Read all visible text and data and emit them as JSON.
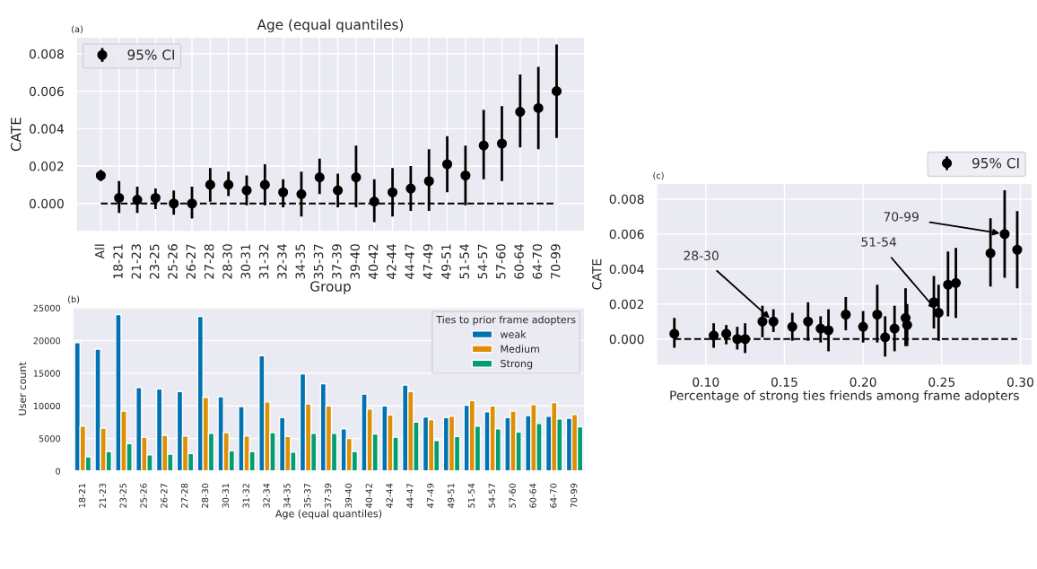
{
  "chart_data": [
    {
      "type": "scatter",
      "title": "Age (equal quantiles)",
      "xlabel": "Group",
      "ylabel": "CATE",
      "annotations": [
        "(a)"
      ],
      "categories": [
        "All",
        "18-21",
        "21-23",
        "23-25",
        "25-26",
        "26-27",
        "27-28",
        "28-30",
        "30-31",
        "31-32",
        "32-34",
        "34-35",
        "35-37",
        "37-39",
        "39-40",
        "40-42",
        "42-44",
        "44-47",
        "47-49",
        "49-51",
        "51-54",
        "54-57",
        "57-60",
        "60-64",
        "64-70",
        "70-99"
      ],
      "series": [
        {
          "name": "95% CI",
          "color": "#000000",
          "values": [
            0.0015,
            0.0003,
            0.0002,
            0.0003,
            0.0,
            0.0,
            0.001,
            0.001,
            0.0007,
            0.001,
            0.0006,
            0.0005,
            0.0014,
            0.0007,
            0.0014,
            0.0001,
            0.0006,
            0.0008,
            0.0012,
            0.0021,
            0.0015,
            0.0031,
            0.0032,
            0.0049,
            0.0051,
            0.006
          ],
          "errors": [
            [
              0.0012,
              0.0018
            ],
            [
              -0.0005,
              0.0012
            ],
            [
              -0.0005,
              0.0009
            ],
            [
              -0.0003,
              0.0008
            ],
            [
              -0.0006,
              0.0007
            ],
            [
              -0.0008,
              0.0009
            ],
            [
              0.0001,
              0.0019
            ],
            [
              0.0004,
              0.0017
            ],
            [
              -0.0001,
              0.0015
            ],
            [
              -0.0001,
              0.0021
            ],
            [
              -0.0002,
              0.0013
            ],
            [
              -0.0007,
              0.0017
            ],
            [
              0.0005,
              0.0024
            ],
            [
              -0.0002,
              0.0016
            ],
            [
              -0.0002,
              0.0031
            ],
            [
              -0.001,
              0.0013
            ],
            [
              -0.0007,
              0.0019
            ],
            [
              -0.0004,
              0.002
            ],
            [
              -0.0004,
              0.0029
            ],
            [
              0.0006,
              0.0036
            ],
            [
              -0.0001,
              0.0031
            ],
            [
              0.0013,
              0.005
            ],
            [
              0.0012,
              0.0052
            ],
            [
              0.003,
              0.0069
            ],
            [
              0.0029,
              0.0073
            ],
            [
              0.0035,
              0.0085
            ]
          ]
        }
      ],
      "ylim": [
        -0.0015,
        0.0089
      ],
      "yticks": [
        {
          "value": 0,
          "label": "0.000"
        },
        {
          "value": 0.002,
          "label": "0.002"
        },
        {
          "value": 0.004,
          "label": "0.004"
        },
        {
          "value": 0.006,
          "label": "0.006"
        },
        {
          "value": 0.008,
          "label": "0.008"
        }
      ],
      "ref_lines": [
        {
          "axis": "y",
          "value": 0,
          "color": "#000000",
          "line_style": "dashed"
        }
      ],
      "marker": "circle",
      "grid": true,
      "legend": "top left"
    },
    {
      "type": "bar",
      "xlabel": "Age (equal quantiles)",
      "ylabel": "User count",
      "legend_title": "Ties to prior frame adopters",
      "annotations": [
        "(b)"
      ],
      "categories": [
        "18-21",
        "21-23",
        "23-25",
        "25-26",
        "26-27",
        "27-28",
        "28-30",
        "30-31",
        "31-32",
        "32-34",
        "34-35",
        "35-37",
        "37-39",
        "39-40",
        "40-42",
        "42-44",
        "44-47",
        "47-49",
        "49-51",
        "51-54",
        "54-57",
        "57-60",
        "60-64",
        "64-70",
        "70-99"
      ],
      "series": [
        {
          "name": "weak",
          "color": "#0173b2",
          "values": [
            19700,
            18700,
            24000,
            12800,
            12600,
            12200,
            23700,
            11400,
            9900,
            17700,
            8200,
            14900,
            13400,
            6500,
            11800,
            10000,
            13200,
            8300,
            8200,
            10100,
            9100,
            8200,
            8500,
            8400,
            8100
          ]
        },
        {
          "name": "Medium",
          "color": "#de8f05",
          "values": [
            6900,
            6600,
            9200,
            5200,
            5500,
            5400,
            11300,
            5900,
            5400,
            10600,
            5300,
            10300,
            10000,
            5000,
            9500,
            8600,
            12200,
            7900,
            8400,
            10800,
            10000,
            9200,
            10200,
            10500,
            8700
          ]
        },
        {
          "name": "Strong",
          "color": "#029e73",
          "values": [
            2200,
            3000,
            4200,
            2500,
            2600,
            2700,
            5800,
            3100,
            3000,
            5900,
            2900,
            5800,
            5800,
            3000,
            5700,
            5200,
            7500,
            4700,
            5300,
            6900,
            6500,
            6000,
            7300,
            8000,
            6800
          ]
        }
      ],
      "ylim": [
        0,
        25200
      ],
      "yticks": [
        0,
        5000,
        10000,
        15000,
        20000,
        25000
      ],
      "grid": "y",
      "legend": "top right"
    },
    {
      "type": "scatter",
      "xlabel": "Percentage of strong ties friends among frame adopters",
      "ylabel": "CATE",
      "annotations": [
        "(c)",
        {
          "text": "28-30",
          "x": 0.143,
          "y": 0.001
        },
        {
          "text": "51-54",
          "x": 0.248,
          "y": 0.0015
        },
        {
          "text": "70-99",
          "x": 0.29,
          "y": 0.006
        }
      ],
      "series": [
        {
          "name": "95% CI",
          "color": "#000000",
          "x": [
            0.08,
            0.105,
            0.113,
            0.12,
            0.125,
            0.136,
            0.143,
            0.155,
            0.165,
            0.173,
            0.178,
            0.189,
            0.2,
            0.209,
            0.214,
            0.22,
            0.227,
            0.228,
            0.245,
            0.248,
            0.254,
            0.259,
            0.281,
            0.29,
            0.298
          ],
          "values": [
            0.0003,
            0.0002,
            0.0003,
            0.0,
            0.0,
            0.001,
            0.001,
            0.0007,
            0.001,
            0.0006,
            0.0005,
            0.0014,
            0.0007,
            0.0014,
            0.0001,
            0.0006,
            0.0012,
            0.0008,
            0.0021,
            0.0015,
            0.0031,
            0.0032,
            0.0049,
            0.006,
            0.0051
          ],
          "errors": [
            [
              -0.0005,
              0.0012
            ],
            [
              -0.0005,
              0.0009
            ],
            [
              -0.0003,
              0.0008
            ],
            [
              -0.0006,
              0.0007
            ],
            [
              -0.0008,
              0.0009
            ],
            [
              0.0001,
              0.0019
            ],
            [
              0.0004,
              0.0017
            ],
            [
              -0.0001,
              0.0015
            ],
            [
              -0.0001,
              0.0021
            ],
            [
              -0.0002,
              0.0013
            ],
            [
              -0.0007,
              0.0017
            ],
            [
              0.0005,
              0.0024
            ],
            [
              -0.0002,
              0.0016
            ],
            [
              -0.0002,
              0.0031
            ],
            [
              -0.001,
              0.0013
            ],
            [
              -0.0007,
              0.0019
            ],
            [
              -0.0004,
              0.0029
            ],
            [
              -0.0004,
              0.002
            ],
            [
              0.0006,
              0.0036
            ],
            [
              -0.0001,
              0.0031
            ],
            [
              0.0013,
              0.005
            ],
            [
              0.0012,
              0.0052
            ],
            [
              0.003,
              0.0069
            ],
            [
              0.0035,
              0.0085
            ],
            [
              0.0029,
              0.0073
            ]
          ]
        }
      ],
      "xlim": [
        0.0686,
        0.3076
      ],
      "xticks": [
        {
          "value": 0.1,
          "label": "0.10"
        },
        {
          "value": 0.15,
          "label": "0.15"
        },
        {
          "value": 0.2,
          "label": "0.20"
        },
        {
          "value": 0.25,
          "label": "0.25"
        },
        {
          "value": 0.3,
          "label": "0.30"
        }
      ],
      "ylim": [
        -0.0015,
        0.0089
      ],
      "yticks": [
        {
          "value": 0,
          "label": "0.000"
        },
        {
          "value": 0.002,
          "label": "0.002"
        },
        {
          "value": 0.004,
          "label": "0.004"
        },
        {
          "value": 0.006,
          "label": "0.006"
        },
        {
          "value": 0.008,
          "label": "0.008"
        }
      ],
      "ref_lines": [
        {
          "axis": "y",
          "value": 0,
          "color": "#000000",
          "line_style": "dashed"
        }
      ],
      "marker": "circle",
      "grid": true,
      "legend": "top right"
    }
  ]
}
